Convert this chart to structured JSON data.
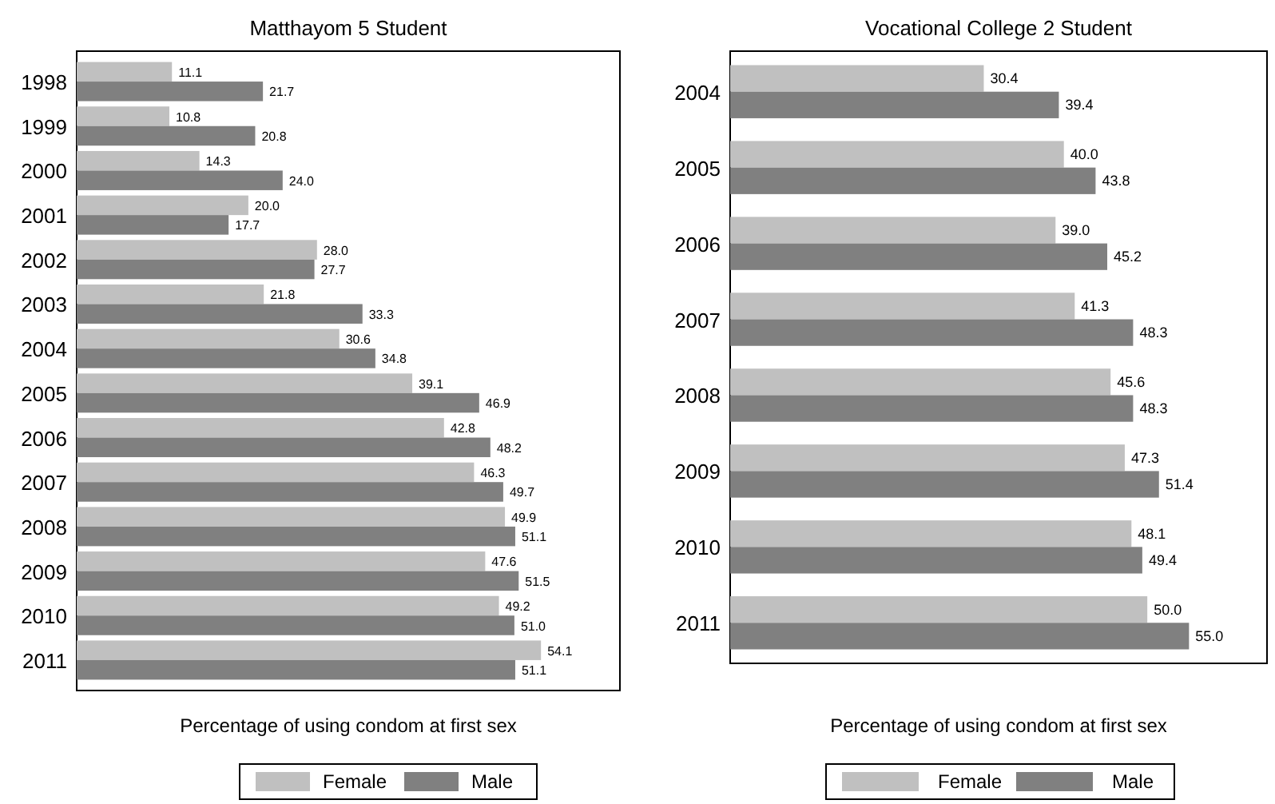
{
  "chart_data": [
    {
      "type": "bar",
      "orientation": "horizontal",
      "title": "Matthayom 5 Student",
      "xlabel": "Percentage of using condom at first sex",
      "categories": [
        "1998",
        "1999",
        "2000",
        "2001",
        "2002",
        "2003",
        "2004",
        "2005",
        "2006",
        "2007",
        "2008",
        "2009",
        "2010",
        "2011"
      ],
      "series": [
        {
          "name": "Female",
          "color": "#c0c0c0",
          "values": [
            11.1,
            10.8,
            14.3,
            20.0,
            28.0,
            21.8,
            30.6,
            39.1,
            42.8,
            46.3,
            49.9,
            47.6,
            49.2,
            54.1
          ],
          "value_labels": [
            "11.1",
            "10.8",
            "14.3",
            "20.0",
            "28.0",
            "21.8",
            "30.6",
            "39.1",
            "42.8",
            "46.3",
            "49.9",
            "47.6",
            "49.2",
            "54.1"
          ]
        },
        {
          "name": "Male",
          "color": "#808080",
          "values": [
            21.7,
            20.8,
            24.0,
            17.7,
            27.7,
            33.3,
            34.8,
            46.9,
            48.2,
            49.7,
            51.1,
            51.5,
            51.0,
            51.1
          ],
          "value_labels": [
            "21.7",
            "20.8",
            "24.0",
            "17.7",
            "27.7",
            "33.3",
            "34.8",
            "46.9",
            "48.2",
            "49.7",
            "51.1",
            "51.5",
            "51.0",
            "51.1"
          ]
        }
      ],
      "legend": "bottom",
      "tick_labels": "y"
    },
    {
      "type": "bar",
      "orientation": "horizontal",
      "title": "Vocational College 2 Student",
      "xlabel": "Percentage of using condom at first sex",
      "categories": [
        "2004",
        "2005",
        "2006",
        "2007",
        "2008",
        "2009",
        "2010",
        "2011"
      ],
      "series": [
        {
          "name": "Female",
          "color": "#c0c0c0",
          "values": [
            30.4,
            40.0,
            39.0,
            41.3,
            45.6,
            47.3,
            48.1,
            50.0
          ],
          "value_labels": [
            "30.4",
            "40.0",
            "39.0",
            "41.3",
            "45.6",
            "47.3",
            "48.1",
            "50.0"
          ]
        },
        {
          "name": "Male",
          "color": "#808080",
          "values": [
            39.4,
            43.8,
            45.2,
            48.3,
            48.3,
            51.4,
            49.4,
            55.0
          ],
          "value_labels": [
            "39.4",
            "43.8",
            "45.2",
            "48.3",
            "48.3",
            "51.4",
            "49.4",
            "55.0"
          ]
        }
      ],
      "legend": "bottom",
      "tick_labels": "y"
    }
  ]
}
